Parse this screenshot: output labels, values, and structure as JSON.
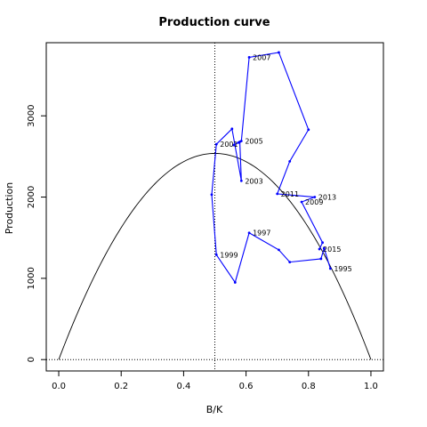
{
  "chart_data": {
    "type": "line",
    "title": "Production curve",
    "xlabel": "B/K",
    "ylabel": "Production",
    "xlim": [
      -0.04,
      1.04
    ],
    "ylim": [
      -140,
      3900
    ],
    "x_ticks": [
      "0.0",
      "0.2",
      "0.4",
      "0.6",
      "0.8",
      "1.0"
    ],
    "x_tick_values": [
      0,
      0.2,
      0.4,
      0.6,
      0.8,
      1.0
    ],
    "y_ticks": [
      "0",
      "1000",
      "2000",
      "3000"
    ],
    "y_tick_values": [
      0,
      1000,
      2000,
      3000
    ],
    "grid": false,
    "reference_lines": {
      "vertical_x": 0.5,
      "horizontal_y": 0,
      "style": "dotted"
    },
    "curve": {
      "color": "#000000",
      "r": 10150,
      "K": 1.0,
      "x_range": [
        0,
        1
      ]
    },
    "series": [
      {
        "color": "#0000ff",
        "x": [
          0.87,
          0.85,
          0.84,
          0.74,
          0.705,
          0.61,
          0.565,
          0.505,
          0.49,
          0.505,
          0.555,
          0.585,
          0.58,
          0.575,
          0.56,
          0.585,
          0.61,
          0.705,
          0.8,
          0.74,
          0.7,
          0.82,
          0.778,
          0.845,
          0.835
        ],
        "y": [
          1120,
          1370,
          1240,
          1200,
          1350,
          1560,
          950,
          1290,
          2030,
          2650,
          2840,
          2200,
          2680,
          2670,
          2640,
          2690,
          3720,
          3780,
          2830,
          2440,
          2040,
          2000,
          1940,
          1440,
          1360
        ]
      }
    ],
    "annotations": [
      {
        "text": "1995",
        "x": 0.87,
        "y": 1120
      },
      {
        "text": "1997",
        "x": 0.61,
        "y": 1560
      },
      {
        "text": "1999",
        "x": 0.505,
        "y": 1290
      },
      {
        "text": "2001",
        "x": 0.505,
        "y": 2650
      },
      {
        "text": "2003",
        "x": 0.585,
        "y": 2200
      },
      {
        "text": "2005",
        "x": 0.585,
        "y": 2690
      },
      {
        "text": "2007",
        "x": 0.61,
        "y": 3720
      },
      {
        "text": "2009",
        "x": 0.778,
        "y": 1940
      },
      {
        "text": "2011",
        "x": 0.7,
        "y": 2040
      },
      {
        "text": "2013",
        "x": 0.82,
        "y": 2000
      },
      {
        "text": "2015",
        "x": 0.835,
        "y": 1360
      }
    ]
  }
}
